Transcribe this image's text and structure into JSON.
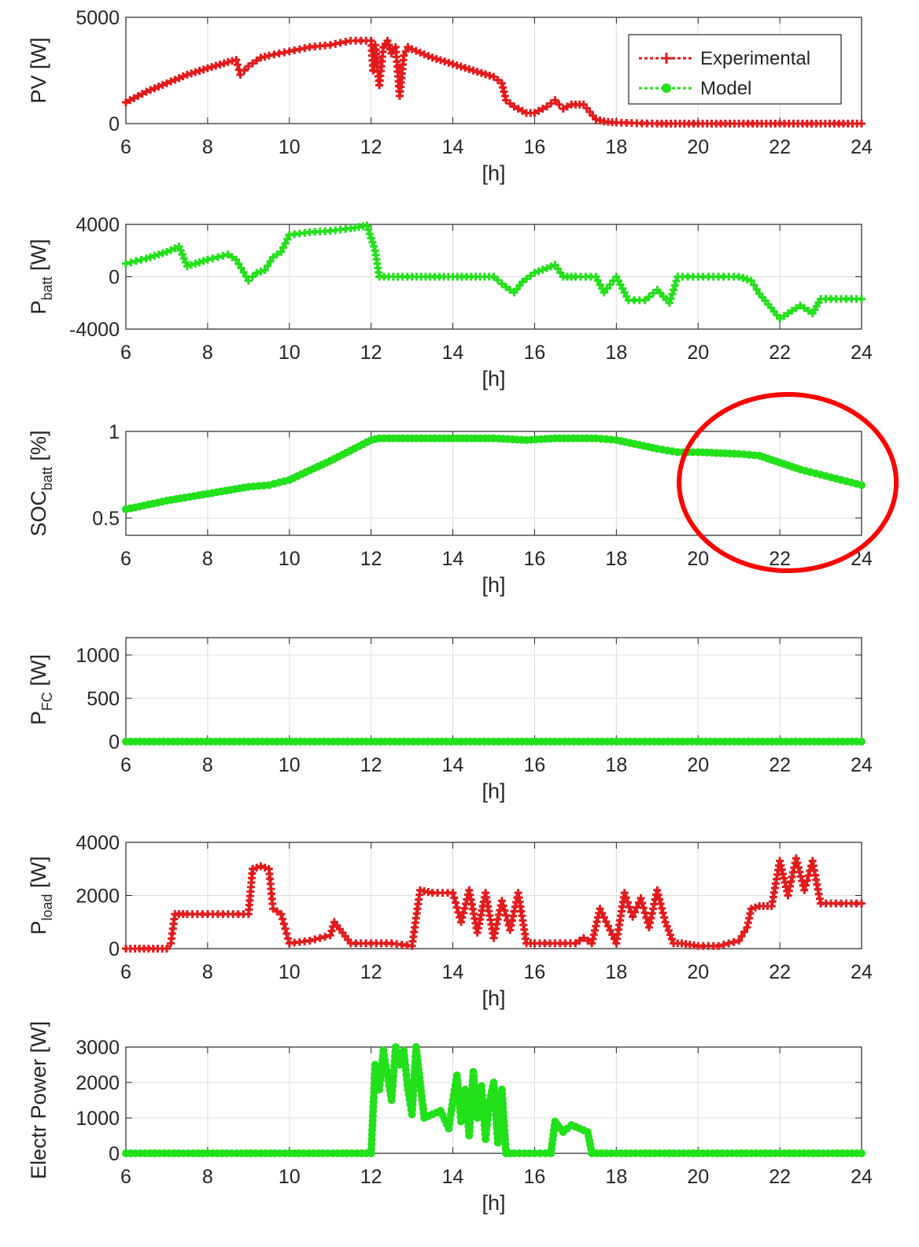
{
  "colors": {
    "experimental": "#e31a1c",
    "model": "#22e01a",
    "highlight": "#ff0000",
    "axis": "#262626",
    "grid": "#dcdcdc"
  },
  "legend": {
    "placement": "top-right",
    "entries": [
      "Experimental",
      "Model"
    ]
  },
  "chart_data": [
    {
      "type": "line",
      "ylabel": "PV [W]",
      "xlabel": "[h]",
      "xlim": [
        6,
        24
      ],
      "ylim": [
        0,
        5000
      ],
      "grid": true,
      "xticks": [
        6,
        8,
        10,
        12,
        14,
        16,
        18,
        20,
        22,
        24
      ],
      "yticks": [
        0,
        5000
      ],
      "series": [
        {
          "name": "Experimental",
          "color": "#e31a1c",
          "marker": "plus",
          "x": [
            6,
            6.5,
            7,
            7.5,
            8,
            8.5,
            8.7,
            8.8,
            9,
            9.3,
            9.5,
            10,
            10.5,
            11,
            11.5,
            12,
            12.05,
            12.1,
            12.2,
            12.3,
            12.4,
            12.5,
            12.6,
            12.7,
            12.8,
            12.9,
            13,
            13.5,
            14,
            14.5,
            15,
            15.2,
            15.3,
            15.5,
            15.8,
            16,
            16.3,
            16.5,
            16.7,
            16.9,
            17.2,
            17.5,
            17.7,
            18,
            18.5,
            19,
            20,
            21,
            22,
            23,
            24
          ],
          "y": [
            1000,
            1500,
            1900,
            2300,
            2600,
            2900,
            3000,
            2300,
            2700,
            3100,
            3200,
            3400,
            3600,
            3700,
            3900,
            3900,
            2500,
            3700,
            1800,
            3600,
            3900,
            3300,
            3600,
            1300,
            3200,
            3600,
            3500,
            3100,
            2800,
            2500,
            2200,
            1900,
            1100,
            800,
            500,
            500,
            800,
            1100,
            700,
            900,
            900,
            200,
            100,
            50,
            20,
            0,
            0,
            0,
            0,
            0,
            0
          ]
        }
      ]
    },
    {
      "type": "scatter",
      "ylabel": "P",
      "ylabel_sub": "batt",
      "ylabel_unit": "[W]",
      "xlabel": "[h]",
      "xlim": [
        6,
        24
      ],
      "ylim": [
        -4000,
        4000
      ],
      "grid": true,
      "xticks": [
        6,
        8,
        10,
        12,
        14,
        16,
        18,
        20,
        22,
        24
      ],
      "yticks": [
        -4000,
        0,
        4000
      ],
      "series": [
        {
          "name": "Model",
          "color": "#22e01a",
          "marker": "plus",
          "x": [
            6,
            6.5,
            7,
            7.3,
            7.5,
            7.8,
            8,
            8.5,
            8.7,
            9,
            9.2,
            9.4,
            9.6,
            9.8,
            10,
            10.5,
            11,
            11.5,
            11.9,
            12.1,
            12.2,
            13,
            14,
            15,
            15.3,
            15.5,
            15.7,
            16,
            16.5,
            16.7,
            17,
            17.5,
            17.7,
            18,
            18.3,
            18.7,
            19,
            19.3,
            19.5,
            20,
            20.5,
            21,
            21.3,
            21.5,
            22,
            22.5,
            22.8,
            23,
            23.5,
            24
          ],
          "y": [
            1000,
            1400,
            1900,
            2300,
            800,
            1100,
            1300,
            1700,
            1300,
            -300,
            300,
            500,
            1500,
            1900,
            3200,
            3400,
            3500,
            3700,
            3900,
            2000,
            0,
            0,
            0,
            0,
            -800,
            -1200,
            -400,
            300,
            900,
            0,
            0,
            0,
            -1200,
            0,
            -1800,
            -1800,
            -1000,
            -2000,
            0,
            0,
            0,
            0,
            -300,
            -1300,
            -3200,
            -2200,
            -2800,
            -1700,
            -1700,
            -1700
          ]
        }
      ]
    },
    {
      "type": "line",
      "ylabel": "SOC",
      "ylabel_sub": "batt",
      "ylabel_unit": "[%]",
      "xlabel": "[h]",
      "xlim": [
        6,
        24
      ],
      "ylim": [
        0.4,
        1
      ],
      "grid": true,
      "xticks": [
        6,
        8,
        10,
        12,
        14,
        16,
        18,
        20,
        22,
        24
      ],
      "yticks": [
        0.5,
        1
      ],
      "series": [
        {
          "name": "Model",
          "color": "#22e01a",
          "marker": "dot",
          "x": [
            6,
            7,
            8,
            9,
            9.5,
            10,
            11,
            12,
            12.2,
            13,
            14,
            15,
            15.8,
            16.5,
            17.5,
            18,
            19,
            19.5,
            20,
            21,
            21.5,
            22,
            22.5,
            23,
            23.5,
            24
          ],
          "y": [
            0.55,
            0.6,
            0.64,
            0.68,
            0.69,
            0.72,
            0.83,
            0.95,
            0.96,
            0.96,
            0.96,
            0.96,
            0.95,
            0.96,
            0.96,
            0.95,
            0.9,
            0.88,
            0.88,
            0.87,
            0.86,
            0.82,
            0.78,
            0.75,
            0.72,
            0.69
          ]
        }
      ],
      "annotation": {
        "type": "ellipse",
        "color": "#ff0000",
        "around_x": [
          20,
          24
        ],
        "around_y": [
          0.4,
          1.1
        ]
      }
    },
    {
      "type": "line",
      "ylabel": "P",
      "ylabel_sub": "FC",
      "ylabel_unit": "[W]",
      "xlabel": "[h]",
      "xlim": [
        6,
        24
      ],
      "ylim": [
        0,
        1200
      ],
      "grid": true,
      "xticks": [
        6,
        8,
        10,
        12,
        14,
        16,
        18,
        20,
        22,
        24
      ],
      "yticks": [
        0,
        500,
        1000
      ],
      "series": [
        {
          "name": "Model",
          "color": "#22e01a",
          "marker": "dot",
          "x": [
            6,
            24
          ],
          "y": [
            0,
            0
          ]
        }
      ]
    },
    {
      "type": "line",
      "ylabel": "P",
      "ylabel_sub": "load",
      "ylabel_unit": "[W]",
      "xlabel": "[h]",
      "xlim": [
        6,
        24
      ],
      "ylim": [
        0,
        4000
      ],
      "grid": true,
      "xticks": [
        6,
        8,
        10,
        12,
        14,
        16,
        18,
        20,
        22,
        24
      ],
      "yticks": [
        0,
        2000,
        4000
      ],
      "series": [
        {
          "name": "Experimental",
          "color": "#e31a1c",
          "marker": "plus",
          "x": [
            6,
            7,
            7.1,
            7.2,
            7.3,
            7.5,
            8,
            8.5,
            9,
            9.1,
            9.3,
            9.5,
            9.6,
            9.8,
            10,
            10.5,
            11,
            11.1,
            11.5,
            12,
            12.5,
            13,
            13.2,
            13.5,
            14,
            14.2,
            14.4,
            14.6,
            14.8,
            15,
            15.2,
            15.4,
            15.6,
            15.8,
            16,
            16.5,
            17,
            17.2,
            17.4,
            17.6,
            18,
            18.2,
            18.4,
            18.6,
            18.8,
            19,
            19.2,
            19.4,
            19.6,
            20,
            20.5,
            21,
            21.2,
            21.3,
            21.5,
            21.8,
            22,
            22.2,
            22.4,
            22.6,
            22.8,
            23,
            23.5,
            24
          ],
          "y": [
            0,
            0,
            200,
            1300,
            1300,
            1300,
            1300,
            1300,
            1300,
            3000,
            3100,
            3000,
            1500,
            1300,
            200,
            300,
            500,
            1000,
            200,
            200,
            200,
            100,
            2200,
            2100,
            2100,
            1000,
            2200,
            600,
            2100,
            400,
            1800,
            700,
            2100,
            200,
            200,
            200,
            200,
            400,
            200,
            1500,
            200,
            2100,
            1200,
            1900,
            800,
            2200,
            1000,
            200,
            200,
            100,
            100,
            300,
            800,
            1500,
            1600,
            1600,
            3300,
            2000,
            3400,
            2200,
            3300,
            1700,
            1700,
            1700
          ]
        }
      ]
    },
    {
      "type": "line",
      "ylabel": "Electr Power [W]",
      "xlabel": "[h]",
      "xlim": [
        6,
        24
      ],
      "ylim": [
        0,
        3000
      ],
      "grid": true,
      "xticks": [
        6,
        8,
        10,
        12,
        14,
        16,
        18,
        20,
        22,
        24
      ],
      "yticks": [
        0,
        1000,
        2000,
        3000
      ],
      "series": [
        {
          "name": "Model",
          "color": "#22e01a",
          "marker": "dot",
          "x": [
            6,
            8,
            10,
            12,
            12.1,
            12.2,
            12.3,
            12.4,
            12.5,
            12.6,
            12.7,
            12.8,
            12.9,
            13,
            13.1,
            13.2,
            13.3,
            13.5,
            13.7,
            13.9,
            14,
            14.1,
            14.2,
            14.3,
            14.4,
            14.5,
            14.6,
            14.7,
            14.8,
            14.9,
            15,
            15.1,
            15.2,
            15.3,
            15.5,
            16,
            16.4,
            16.5,
            16.7,
            16.9,
            17.1,
            17.3,
            17.4,
            18,
            20,
            22,
            24
          ],
          "y": [
            0,
            0,
            0,
            0,
            2500,
            1800,
            2900,
            2200,
            1500,
            3000,
            2500,
            2900,
            1800,
            1100,
            3000,
            2000,
            1000,
            1100,
            1200,
            700,
            1500,
            2200,
            900,
            1800,
            500,
            2300,
            1000,
            1900,
            400,
            1500,
            2000,
            300,
            1800,
            0,
            0,
            0,
            0,
            900,
            600,
            800,
            700,
            600,
            0,
            0,
            0,
            0,
            0
          ]
        }
      ]
    }
  ]
}
